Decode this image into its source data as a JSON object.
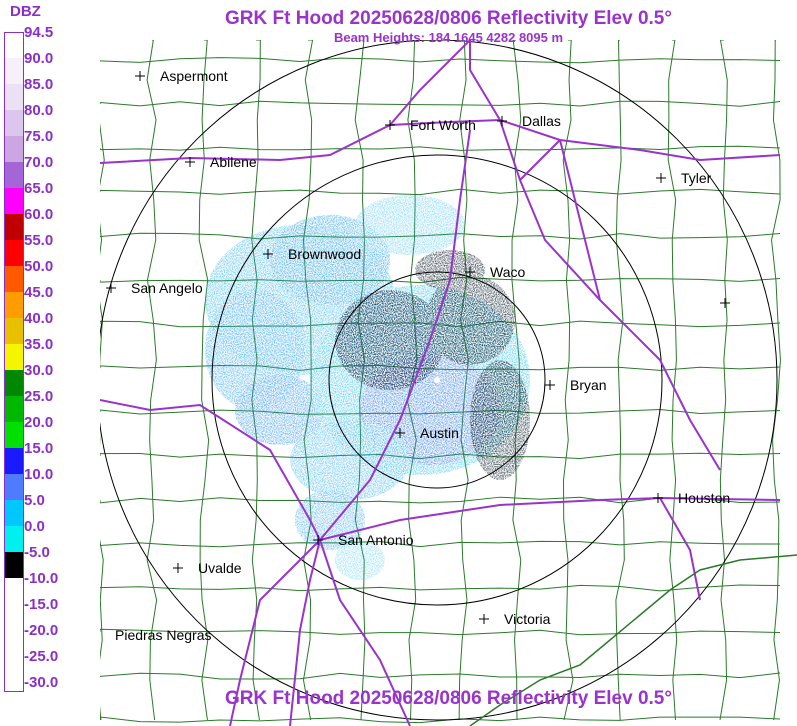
{
  "header": {
    "title": "GRK Ft Hood 20250628/0806 Reflectivity Elev 0.5°",
    "subtitle": "Beam Heights: 184 1645 4282 8095 m",
    "footer_title": "GRK Ft Hood 20250628/0806 Reflectivity Elev 0.5°"
  },
  "legend": {
    "unit": "DBZ",
    "ticks": [
      {
        "label": "94.5",
        "color": "#ffffff"
      },
      {
        "label": "90.0",
        "color": "#f6f0fa"
      },
      {
        "label": "85.0",
        "color": "#ece0f5"
      },
      {
        "label": "80.0",
        "color": "#ddc6ee"
      },
      {
        "label": "75.0",
        "color": "#cba6e3"
      },
      {
        "label": "70.0",
        "color": "#a465d6"
      },
      {
        "label": "65.0",
        "color": "#ff00ff"
      },
      {
        "label": "60.0",
        "color": "#c00000"
      },
      {
        "label": "55.0",
        "color": "#ff0000"
      },
      {
        "label": "50.0",
        "color": "#ff5a00"
      },
      {
        "label": "45.0",
        "color": "#ff9c00"
      },
      {
        "label": "40.0",
        "color": "#e8c000"
      },
      {
        "label": "35.0",
        "color": "#f5f500"
      },
      {
        "label": "30.0",
        "color": "#008800"
      },
      {
        "label": "25.0",
        "color": "#00b800"
      },
      {
        "label": "20.0",
        "color": "#00e000"
      },
      {
        "label": "15.0",
        "color": "#1a1aff"
      },
      {
        "label": "10.0",
        "color": "#4f7cff"
      },
      {
        "label": "5.0",
        "color": "#00c8ff"
      },
      {
        "label": "0.0",
        "color": "#00f0f0"
      },
      {
        "label": "-5.0",
        "color": "#000000"
      },
      {
        "label": "-10.0",
        "color": "#ffffff"
      },
      {
        "label": "-15.0",
        "color": "#ffffff"
      },
      {
        "label": "-20.0",
        "color": "#ffffff"
      },
      {
        "label": "-25.0",
        "color": "#ffffff"
      },
      {
        "label": "-30.0",
        "color": "#ffffff"
      }
    ]
  },
  "cities": [
    {
      "name": "Aspermont",
      "key": "aspermont"
    },
    {
      "name": "Fort Worth",
      "key": "fort-worth"
    },
    {
      "name": "Dallas",
      "key": "dallas"
    },
    {
      "name": "Abilene",
      "key": "abilene"
    },
    {
      "name": "Tyler",
      "key": "tyler"
    },
    {
      "name": "Brownwood",
      "key": "brownwood"
    },
    {
      "name": "Waco",
      "key": "waco"
    },
    {
      "name": "San Angelo",
      "key": "san-angelo"
    },
    {
      "name": "Bryan",
      "key": "bryan"
    },
    {
      "name": "Austin",
      "key": "austin"
    },
    {
      "name": "Houston",
      "key": "houston"
    },
    {
      "name": "San Antonio",
      "key": "san-antonio"
    },
    {
      "name": "Uvalde",
      "key": "uvalde"
    },
    {
      "name": "Victoria",
      "key": "victoria"
    },
    {
      "name": "Piedras Negras",
      "key": "piedras-negras"
    }
  ],
  "colors": {
    "title": "#9933cc",
    "highway": "#9933cc",
    "county_lines": "#2a7a2a",
    "range_rings": "#000000"
  }
}
